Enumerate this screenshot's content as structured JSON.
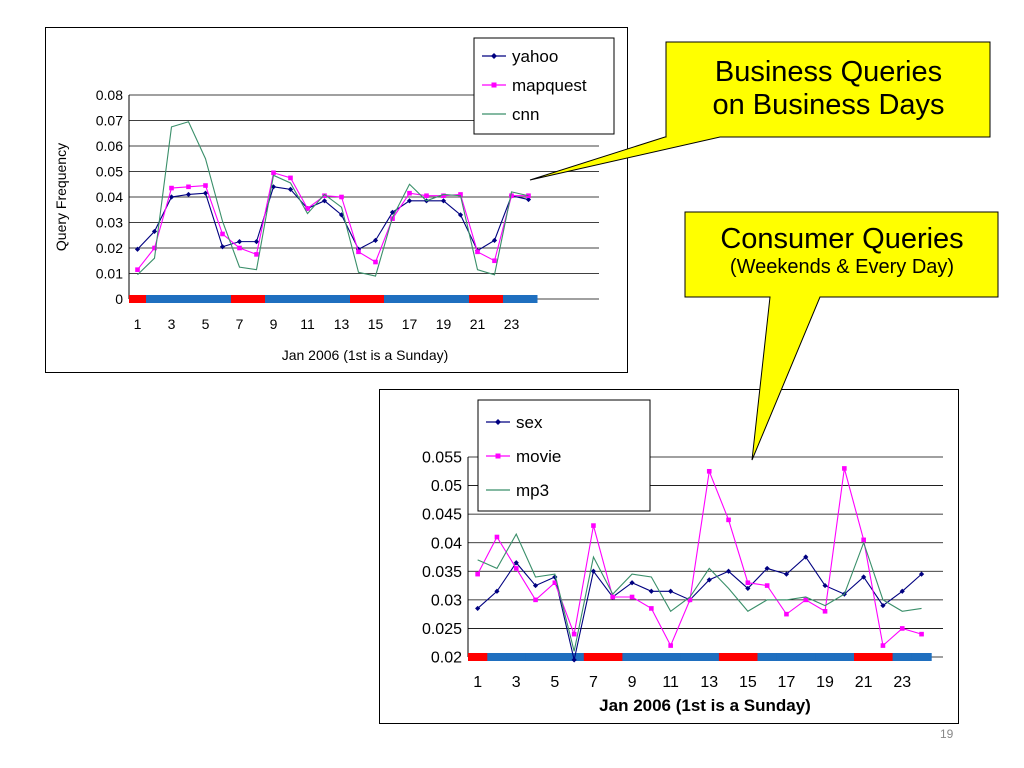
{
  "callouts": {
    "business": {
      "title": "Business Queries",
      "subtitle": "on Business Days"
    },
    "consumer": {
      "title": "Consumer Queries",
      "subtitle": "(Weekends & Every Day)"
    },
    "fill_color": "#ffff00"
  },
  "slide_number": "19",
  "weekend_color": "#ff0000",
  "weekday_color": "#1f6fbf",
  "chart_data": [
    {
      "type": "line",
      "ylabel": "Query Frequency",
      "xlabel": "Jan 2006 (1st is a Sunday)",
      "ylim": [
        0,
        0.08
      ],
      "yticks": [
        "0",
        "0.01",
        "0.02",
        "0.03",
        "0.04",
        "0.05",
        "0.06",
        "0.07",
        "0.08"
      ],
      "xticks": [
        "1",
        "3",
        "5",
        "7",
        "9",
        "11",
        "13",
        "15",
        "17",
        "19",
        "21",
        "23"
      ],
      "x": [
        1,
        2,
        3,
        4,
        5,
        6,
        7,
        8,
        9,
        10,
        11,
        12,
        13,
        14,
        15,
        16,
        17,
        18,
        19,
        20,
        21,
        22,
        23,
        24
      ],
      "legend_position": "top-right",
      "grid": true,
      "weekend_days": [
        1,
        7,
        8,
        14,
        15,
        21,
        22
      ],
      "series": [
        {
          "name": "yahoo",
          "color": "#000080",
          "marker": "diamond",
          "values": [
            0.0195,
            0.0265,
            0.04,
            0.041,
            0.0415,
            0.0205,
            0.0225,
            0.0225,
            0.044,
            0.043,
            0.0355,
            0.0385,
            0.033,
            0.0195,
            0.023,
            0.034,
            0.0385,
            0.0385,
            0.0385,
            0.033,
            0.019,
            0.023,
            0.0405,
            0.039
          ]
        },
        {
          "name": "mapquest",
          "color": "#ff00ff",
          "marker": "square",
          "values": [
            0.0115,
            0.02,
            0.0435,
            0.044,
            0.0445,
            0.0255,
            0.02,
            0.0175,
            0.0495,
            0.0475,
            0.0355,
            0.0405,
            0.04,
            0.0185,
            0.0145,
            0.0315,
            0.0415,
            0.0405,
            0.0405,
            0.041,
            0.0185,
            0.015,
            0.0405,
            0.0405
          ]
        },
        {
          "name": "cnn",
          "color": "#3a8f6a",
          "marker": "none",
          "values": [
            0.0095,
            0.016,
            0.0675,
            0.0695,
            0.055,
            0.0305,
            0.0125,
            0.0115,
            0.0485,
            0.0455,
            0.0335,
            0.041,
            0.036,
            0.0105,
            0.009,
            0.032,
            0.045,
            0.0385,
            0.041,
            0.0405,
            0.0115,
            0.0095,
            0.042,
            0.0405
          ]
        }
      ]
    },
    {
      "type": "line",
      "ylabel": "",
      "xlabel": "Jan 2006 (1st is a Sunday)",
      "ylim": [
        0.02,
        0.055
      ],
      "yticks": [
        "0.02",
        "0.025",
        "0.03",
        "0.035",
        "0.04",
        "0.045",
        "0.05",
        "0.055"
      ],
      "xticks": [
        "1",
        "3",
        "5",
        "7",
        "9",
        "11",
        "13",
        "15",
        "17",
        "19",
        "21",
        "23"
      ],
      "x": [
        1,
        2,
        3,
        4,
        5,
        6,
        7,
        8,
        9,
        10,
        11,
        12,
        13,
        14,
        15,
        16,
        17,
        18,
        19,
        20,
        21,
        22,
        23,
        24
      ],
      "legend_position": "top-left",
      "grid": true,
      "weekend_days": [
        1,
        7,
        8,
        14,
        15,
        21,
        22
      ],
      "series": [
        {
          "name": "sex",
          "color": "#000080",
          "marker": "diamond",
          "values": [
            0.0285,
            0.0315,
            0.0365,
            0.0325,
            0.034,
            0.0195,
            0.035,
            0.0305,
            0.033,
            0.0315,
            0.0315,
            0.03,
            0.0335,
            0.035,
            0.032,
            0.0355,
            0.0345,
            0.0375,
            0.0325,
            0.031,
            0.034,
            0.029,
            0.0315,
            0.0345
          ]
        },
        {
          "name": "movie",
          "color": "#ff00ff",
          "marker": "square",
          "values": [
            0.0345,
            0.041,
            0.0355,
            0.03,
            0.033,
            0.024,
            0.043,
            0.0305,
            0.0305,
            0.0285,
            0.022,
            0.03,
            0.0525,
            0.044,
            0.033,
            0.0325,
            0.0275,
            0.03,
            0.028,
            0.053,
            0.0405,
            0.022,
            0.025,
            0.024
          ]
        },
        {
          "name": "mp3",
          "color": "#3a8f6a",
          "marker": "none",
          "values": [
            0.037,
            0.0355,
            0.0415,
            0.034,
            0.0345,
            0.021,
            0.0375,
            0.031,
            0.0345,
            0.034,
            0.028,
            0.0305,
            0.0355,
            0.032,
            0.028,
            0.03,
            0.03,
            0.0305,
            0.029,
            0.031,
            0.04,
            0.03,
            0.028,
            0.0285
          ]
        }
      ]
    }
  ]
}
